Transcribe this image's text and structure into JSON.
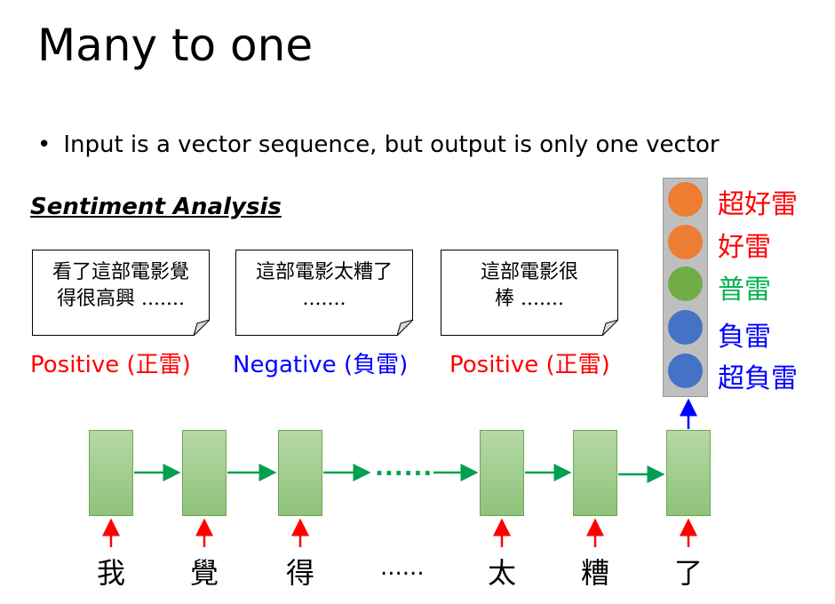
{
  "slide": {
    "title": "Many to one",
    "bullet": "Input is a vector sequence, but output is only one vector",
    "subheading": "Sentiment Analysis"
  },
  "examples": [
    {
      "line1": "看了這部電影覺",
      "line2": "得很高興 .......",
      "label": "Positive (正雷)"
    },
    {
      "line1": "這部電影太糟了",
      "line2": ".......",
      "label": "Negative (負雷)"
    },
    {
      "line1": "這部電影很",
      "line2": "棒 .......",
      "label": "Positive (正雷)"
    }
  ],
  "sequence": {
    "words": [
      "我",
      "覺",
      "得",
      "太",
      "糟",
      "了"
    ],
    "ellipsis_middle": "......",
    "ellipsis_bottom": "......"
  },
  "output_classes": [
    {
      "label": "超好雷",
      "label_color": "#ff0000",
      "circle_color": "#ed7d31"
    },
    {
      "label": "好雷",
      "label_color": "#ff0000",
      "circle_color": "#ed7d31"
    },
    {
      "label": "普雷",
      "label_color": "#00b050",
      "circle_color": "#70ad47"
    },
    {
      "label": "負雷",
      "label_color": "#0000ff",
      "circle_color": "#4472c4"
    },
    {
      "label": "超負雷",
      "label_color": "#0000ff",
      "circle_color": "#4472c4"
    }
  ],
  "colors": {
    "input_arrow": "#ff0000",
    "hidden_arrow": "#00a050",
    "output_arrow": "#0000ff",
    "cell_fill": "#a9d18e"
  }
}
